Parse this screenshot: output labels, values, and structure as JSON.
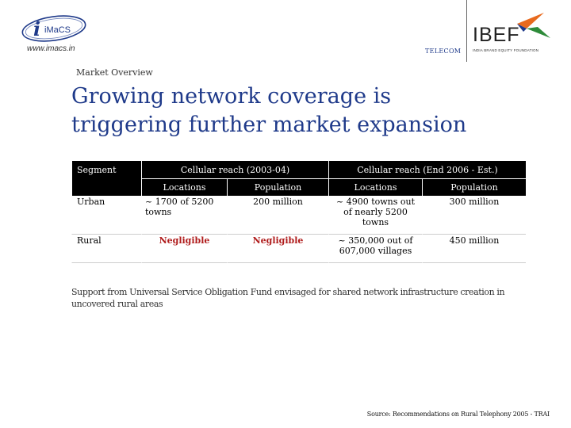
{
  "header": {
    "left_logo_text": "iMaCS",
    "left_logo_url": "www.imacs.in",
    "section_tag": "TELECOM",
    "right_logo_text": "IBEF",
    "right_logo_tagline": "INDIA BRAND EQUITY FOUNDATION"
  },
  "slide": {
    "section": "Market Overview",
    "title_line1": "Growing network coverage is",
    "title_line2": "triggering further market expansion"
  },
  "table": {
    "segment_header": "Segment",
    "group1_header": "Cellular reach (2003-04)",
    "group2_header": "Cellular reach (End 2006 - Est.)",
    "sub_headers": [
      "Locations",
      "Population",
      "Locations",
      "Population"
    ],
    "rows": [
      {
        "segment": "Urban",
        "loc1": "~ 1700 of 5200 towns",
        "pop1": "200 million",
        "loc2": "~ 4900 towns out of nearly 5200 towns",
        "pop2": "300 million"
      },
      {
        "segment": "Rural",
        "loc1": "Negligible",
        "pop1": "Negligible",
        "loc2": "~ 350,000 out of 607,000 villages",
        "pop2": "450 million"
      }
    ]
  },
  "note": "Support from Universal Service Obligation Fund envisaged for shared network infrastructure creation in uncovered rural areas",
  "source": "Source: Recommendations on Rural Telephony 2005 - TRAI",
  "colors": {
    "title": "#1f3a8a",
    "negligible": "#b01c1c",
    "ibef_orange": "#e86a1e",
    "ibef_green": "#2e8b3a"
  }
}
